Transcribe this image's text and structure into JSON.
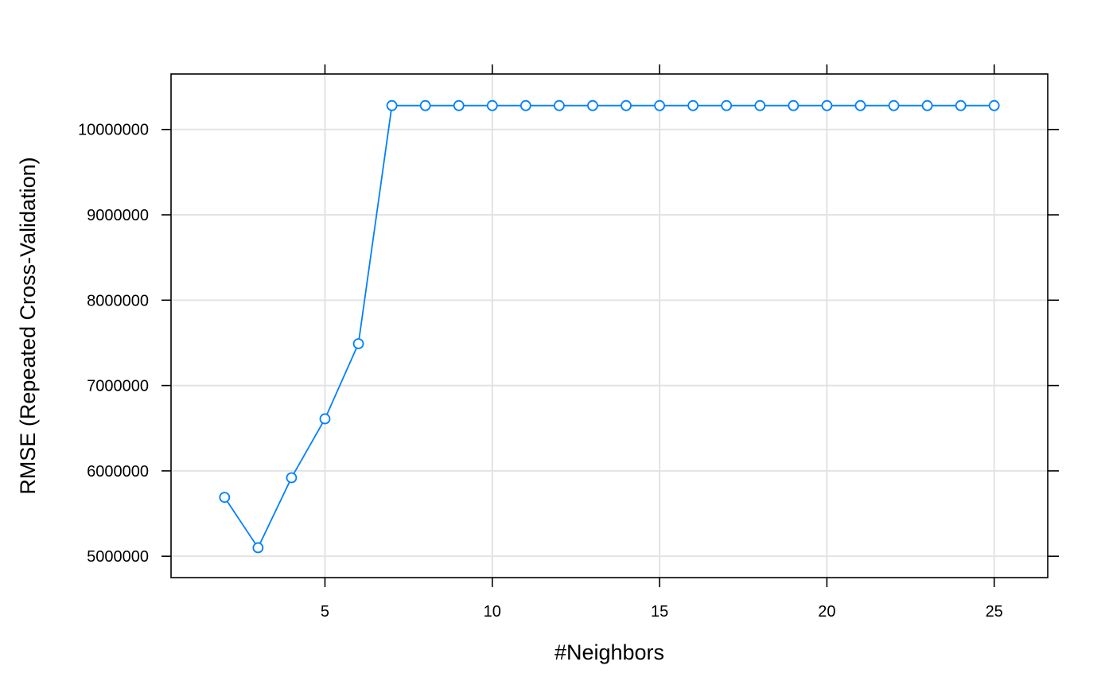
{
  "chart_data": {
    "type": "line",
    "xlabel": "#Neighbors",
    "ylabel": "RMSE (Repeated Cross-Validation)",
    "xlim": [
      0.4,
      26.6
    ],
    "ylim": [
      4750000,
      10650000
    ],
    "x_ticks": [
      5,
      10,
      15,
      20,
      25
    ],
    "y_ticks": [
      5000000,
      6000000,
      7000000,
      8000000,
      9000000,
      10000000
    ],
    "x_tick_labels": [
      "5",
      "10",
      "15",
      "20",
      "25"
    ],
    "y_tick_labels": [
      "5000000",
      "6000000",
      "7000000",
      "8000000",
      "9000000",
      "10000000"
    ],
    "grid": true,
    "marker": "open-circle",
    "colors": {
      "series": "#0080ff",
      "grid": "#e3e3e3",
      "frame": "#000000"
    },
    "series": [
      {
        "x": [
          2,
          3,
          4,
          5,
          6,
          7,
          8,
          9,
          10,
          11,
          12,
          13,
          14,
          15,
          16,
          17,
          18,
          19,
          20,
          21,
          22,
          23,
          24,
          25
        ],
        "values": [
          5690000,
          5100000,
          5920000,
          6610000,
          7490000,
          10280000,
          10280000,
          10280000,
          10280000,
          10280000,
          10280000,
          10280000,
          10280000,
          10280000,
          10280000,
          10280000,
          10280000,
          10280000,
          10280000,
          10280000,
          10280000,
          10280000,
          10280000,
          10280000
        ]
      }
    ]
  }
}
